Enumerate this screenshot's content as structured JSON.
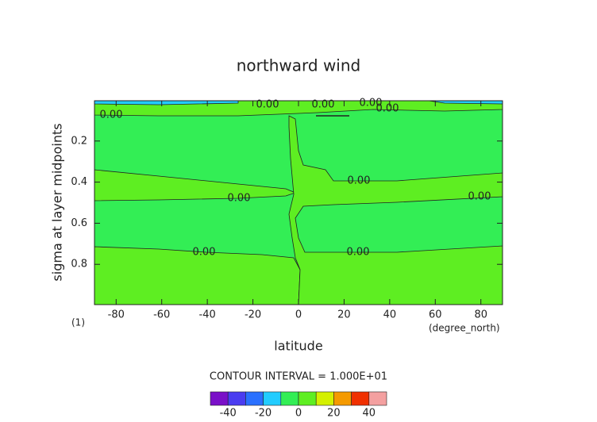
{
  "chart_data": {
    "type": "contour",
    "title": "northward wind",
    "x_label": "latitude",
    "y_label": "sigma at layer midpoints",
    "x_units": "(degree_north)",
    "y_units": "(1)",
    "xlim": [
      -89.5,
      89.5
    ],
    "xticks": [
      -80,
      -60,
      -40,
      -20,
      0,
      20,
      40,
      60,
      80
    ],
    "ylim": [
      0.004,
      0.996
    ],
    "y_inverted": true,
    "yticks": [
      0.2,
      0.4,
      0.6,
      0.8
    ],
    "contour_interval_label": "CONTOUR INTERVAL = 1.000E+01",
    "levels": [
      -50,
      -40,
      -30,
      -20,
      -10,
      0,
      10,
      20,
      30,
      40,
      50
    ],
    "colors": [
      "#7a10c8",
      "#4a3cf0",
      "#2a70ff",
      "#22ccff",
      "#33ee55",
      "#5eee22",
      "#d4f000",
      "#f59a00",
      "#f03000",
      "#f4a0a0"
    ],
    "colorbar_ticks": [
      -40,
      -20,
      0,
      20,
      40
    ],
    "contour_labels": {
      "values": [
        0,
        0,
        0,
        0,
        0,
        0,
        0,
        0,
        0,
        0
      ],
      "value_labels": [
        "0.00",
        "0.00",
        "0.00",
        "0.00",
        "0.00",
        "0.00",
        "0.00",
        "0.00",
        "0.00",
        "0.00"
      ]
    }
  }
}
